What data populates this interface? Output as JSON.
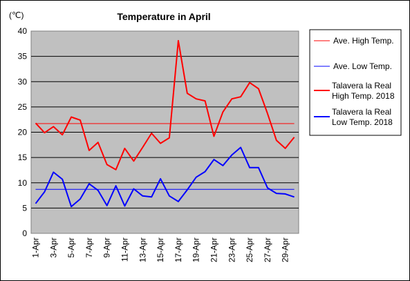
{
  "chart_data": {
    "type": "line",
    "title": "Temperature in April",
    "unit_label": "(℃)",
    "ylim": [
      0,
      40
    ],
    "yticks": [
      "0",
      "5",
      "10",
      "15",
      "20",
      "25",
      "30",
      "35",
      "40"
    ],
    "xlabels": [
      "1-Apr",
      "3-Apr",
      "5-Apr",
      "7-Apr",
      "9-Apr",
      "11-Apr",
      "13-Apr",
      "15-Apr",
      "17-Apr",
      "19-Apr",
      "21-Apr",
      "23-Apr",
      "25-Apr",
      "27-Apr",
      "29-Apr"
    ],
    "x": [
      "1-Apr",
      "2-Apr",
      "3-Apr",
      "4-Apr",
      "5-Apr",
      "6-Apr",
      "7-Apr",
      "8-Apr",
      "9-Apr",
      "10-Apr",
      "11-Apr",
      "12-Apr",
      "13-Apr",
      "14-Apr",
      "15-Apr",
      "16-Apr",
      "17-Apr",
      "18-Apr",
      "19-Apr",
      "20-Apr",
      "21-Apr",
      "22-Apr",
      "23-Apr",
      "24-Apr",
      "25-Apr",
      "26-Apr",
      "27-Apr",
      "28-Apr",
      "29-Apr",
      "30-Apr"
    ],
    "grid": true,
    "plot_background": "#c0c0c0",
    "legend_position": "right",
    "series": [
      {
        "name": "Ave. High Temp.",
        "color": "#ff0000",
        "width": 1,
        "values": [
          21.7,
          21.7,
          21.7,
          21.7,
          21.7,
          21.7,
          21.7,
          21.7,
          21.7,
          21.7,
          21.7,
          21.7,
          21.7,
          21.7,
          21.7,
          21.7,
          21.7,
          21.7,
          21.7,
          21.7,
          21.7,
          21.7,
          21.7,
          21.7,
          21.7,
          21.7,
          21.7,
          21.7,
          21.7,
          21.7
        ]
      },
      {
        "name": "Ave. Low Temp.",
        "color": "#0000ff",
        "width": 1,
        "values": [
          8.7,
          8.7,
          8.7,
          8.7,
          8.7,
          8.7,
          8.7,
          8.7,
          8.7,
          8.7,
          8.7,
          8.7,
          8.7,
          8.7,
          8.7,
          8.7,
          8.7,
          8.7,
          8.7,
          8.7,
          8.7,
          8.7,
          8.7,
          8.7,
          8.7,
          8.7,
          8.7,
          8.7,
          8.7,
          8.7
        ]
      },
      {
        "name": "Talavera la Real High Temp. 2018",
        "legend_lines": [
          "Talavera la Real",
          "High Temp. 2018"
        ],
        "color": "#ff0000",
        "width": 2,
        "values": [
          21.8,
          19.9,
          21.1,
          19.5,
          23.0,
          22.4,
          16.4,
          18.0,
          13.6,
          12.6,
          16.8,
          14.3,
          17.0,
          19.8,
          17.8,
          18.9,
          38.1,
          27.7,
          26.6,
          26.2,
          19.2,
          24.0,
          26.6,
          27.0,
          29.8,
          28.6,
          23.7,
          18.4,
          16.8,
          19.0
        ]
      },
      {
        "name": "Talavera la Real Low Temp. 2018",
        "legend_lines": [
          "Talavera la Real",
          "Low Temp. 2018"
        ],
        "color": "#0000ff",
        "width": 2,
        "values": [
          5.9,
          8.2,
          12.1,
          10.7,
          5.3,
          6.8,
          9.8,
          8.5,
          5.5,
          9.4,
          5.4,
          8.8,
          7.4,
          7.2,
          10.8,
          7.4,
          6.3,
          8.6,
          11.1,
          12.2,
          14.6,
          13.4,
          15.5,
          17.0,
          13.0,
          13.0,
          9.0,
          7.9,
          7.8,
          7.2
        ]
      }
    ]
  }
}
